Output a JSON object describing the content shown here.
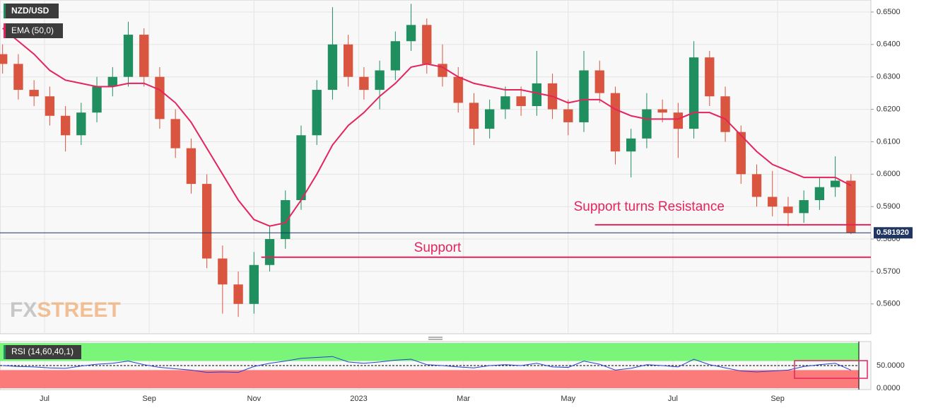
{
  "chart_data": [
    {
      "type": "candlestick",
      "title": "NZD/USD",
      "watermark": [
        "FX",
        "STREET"
      ],
      "x": [
        -0.8,
        -0.5,
        -0.2,
        0.1,
        0.4,
        0.7,
        1.0,
        1.3,
        1.6,
        1.9,
        2.2,
        2.5,
        2.8,
        3.1,
        3.4,
        3.7,
        4.0,
        4.3,
        4.6,
        4.9,
        5.2,
        5.5,
        5.8,
        6.1,
        6.4,
        6.7,
        7.0,
        7.3,
        7.6,
        7.9,
        8.2,
        8.5,
        8.8,
        9.1,
        9.4,
        9.7,
        10.0,
        10.3,
        10.6,
        10.9,
        11.2,
        11.5,
        11.8,
        12.1,
        12.4,
        12.7,
        13.0,
        13.3,
        13.6,
        13.9,
        14.2,
        14.5,
        14.8,
        15.1,
        15.4
      ],
      "open": [
        0.637,
        0.634,
        0.626,
        0.624,
        0.618,
        0.612,
        0.619,
        0.627,
        0.63,
        0.643,
        0.63,
        0.617,
        0.608,
        0.597,
        0.574,
        0.566,
        0.56,
        0.572,
        0.58,
        0.592,
        0.612,
        0.626,
        0.64,
        0.63,
        0.626,
        0.632,
        0.641,
        0.646,
        0.634,
        0.63,
        0.622,
        0.614,
        0.62,
        0.624,
        0.621,
        0.628,
        0.62,
        0.616,
        0.632,
        0.625,
        0.607,
        0.611,
        0.62,
        0.619,
        0.614,
        0.636,
        0.624,
        0.613,
        0.6,
        0.593,
        0.59,
        0.588,
        0.592,
        0.596,
        0.598
      ],
      "high": [
        0.64,
        0.637,
        0.629,
        0.627,
        0.621,
        0.622,
        0.63,
        0.633,
        0.647,
        0.645,
        0.633,
        0.62,
        0.611,
        0.6,
        0.578,
        0.57,
        0.576,
        0.584,
        0.595,
        0.615,
        0.629,
        0.6515,
        0.643,
        0.633,
        0.635,
        0.644,
        0.6525,
        0.648,
        0.64,
        0.633,
        0.625,
        0.623,
        0.627,
        0.627,
        0.638,
        0.631,
        0.623,
        0.638,
        0.635,
        0.627,
        0.614,
        0.625,
        0.623,
        0.622,
        0.641,
        0.638,
        0.627,
        0.615,
        0.603,
        0.601,
        0.593,
        0.595,
        0.599,
        0.6055,
        0.6
      ],
      "low": [
        0.631,
        0.623,
        0.621,
        0.615,
        0.607,
        0.609,
        0.616,
        0.624,
        0.627,
        0.627,
        0.614,
        0.605,
        0.594,
        0.571,
        0.557,
        0.556,
        0.557,
        0.57,
        0.577,
        0.589,
        0.609,
        0.623,
        0.627,
        0.623,
        0.62,
        0.629,
        0.638,
        0.631,
        0.627,
        0.619,
        0.609,
        0.611,
        0.617,
        0.618,
        0.618,
        0.617,
        0.612,
        0.613,
        0.622,
        0.603,
        0.599,
        0.608,
        0.616,
        0.605,
        0.611,
        0.621,
        0.61,
        0.597,
        0.59,
        0.587,
        0.584,
        0.585,
        0.589,
        0.593,
        0.5815
      ],
      "close": [
        0.634,
        0.626,
        0.624,
        0.618,
        0.612,
        0.619,
        0.627,
        0.63,
        0.643,
        0.63,
        0.617,
        0.608,
        0.597,
        0.574,
        0.566,
        0.56,
        0.572,
        0.58,
        0.592,
        0.612,
        0.626,
        0.64,
        0.63,
        0.626,
        0.632,
        0.641,
        0.646,
        0.634,
        0.63,
        0.622,
        0.614,
        0.62,
        0.624,
        0.621,
        0.628,
        0.62,
        0.616,
        0.632,
        0.625,
        0.607,
        0.611,
        0.62,
        0.619,
        0.614,
        0.636,
        0.624,
        0.613,
        0.6,
        0.593,
        0.59,
        0.588,
        0.592,
        0.596,
        0.598,
        0.5819
      ],
      "up_color": "#1f8f5f",
      "down_color": "#d9553f",
      "series": [
        {
          "name": "EMA (50,0)",
          "color": "#e5245e",
          "values": [
            0.645,
            0.641,
            0.637,
            0.632,
            0.629,
            0.628,
            0.627,
            0.627,
            0.628,
            0.628,
            0.626,
            0.622,
            0.616,
            0.608,
            0.6,
            0.592,
            0.586,
            0.584,
            0.585,
            0.592,
            0.6,
            0.609,
            0.615,
            0.619,
            0.624,
            0.628,
            0.633,
            0.634,
            0.633,
            0.63,
            0.628,
            0.627,
            0.626,
            0.626,
            0.625,
            0.624,
            0.622,
            0.623,
            0.623,
            0.62,
            0.618,
            0.617,
            0.617,
            0.617,
            0.619,
            0.619,
            0.617,
            0.612,
            0.607,
            0.603,
            0.601,
            0.599,
            0.599,
            0.599,
            0.5965
          ]
        }
      ],
      "last_price": {
        "value": 0.58192,
        "label": "0.581920"
      },
      "annotations": [
        {
          "text": "Support turns Resistance",
          "value": 0.5844,
          "from": 10.51,
          "color": "#e5245e"
        },
        {
          "text": "Support",
          "value": 0.5744,
          "from": 4.14,
          "color": "#e5245e"
        }
      ],
      "xlim": [
        -0.85,
        15.78
      ],
      "xticks": [
        {
          "value": 0,
          "label": "Jul"
        },
        {
          "value": 2,
          "label": "Sep"
        },
        {
          "value": 4,
          "label": "Nov"
        },
        {
          "value": 6,
          "label": "2023"
        },
        {
          "value": 8,
          "label": "Mar"
        },
        {
          "value": 10,
          "label": "May"
        },
        {
          "value": 12,
          "label": "Jul"
        },
        {
          "value": 14,
          "label": "Sep"
        }
      ],
      "ylim": [
        0.5508,
        0.6537
      ],
      "yticks": [
        {
          "value": 0.56,
          "label": "0.5600"
        },
        {
          "value": 0.57,
          "label": "0.5700"
        },
        {
          "value": 0.58,
          "label": "0.5800"
        },
        {
          "value": 0.59,
          "label": "0.5900"
        },
        {
          "value": 0.6,
          "label": "0.6000"
        },
        {
          "value": 0.61,
          "label": "0.6100"
        },
        {
          "value": 0.62,
          "label": "0.6200"
        },
        {
          "value": 0.63,
          "label": "0.6300"
        },
        {
          "value": 0.64,
          "label": "0.6400"
        },
        {
          "value": 0.65,
          "label": "0.6500"
        }
      ],
      "grid": true
    },
    {
      "type": "line",
      "title": "RSI (14,60,40,1)",
      "color": "#2a3fd0",
      "values": [
        50,
        48,
        47,
        45,
        44,
        49,
        53,
        55,
        60,
        52,
        46,
        43,
        40,
        35,
        36,
        35,
        48,
        55,
        60,
        66,
        68,
        70,
        58,
        55,
        58,
        62,
        64,
        52,
        50,
        47,
        45,
        50,
        52,
        50,
        55,
        47,
        46,
        60,
        53,
        40,
        44,
        52,
        50,
        47,
        64,
        52,
        45,
        38,
        36,
        38,
        40,
        48,
        52,
        55,
        40
      ],
      "upper": 60,
      "lower": 40,
      "upper_color": "#7af57a",
      "lower_color": "#fb7b7b",
      "ylim": [
        0,
        100
      ],
      "yticks": [
        {
          "value": 50,
          "label": "50.0000"
        },
        {
          "value": 0,
          "label": "0.0000"
        }
      ]
    }
  ]
}
